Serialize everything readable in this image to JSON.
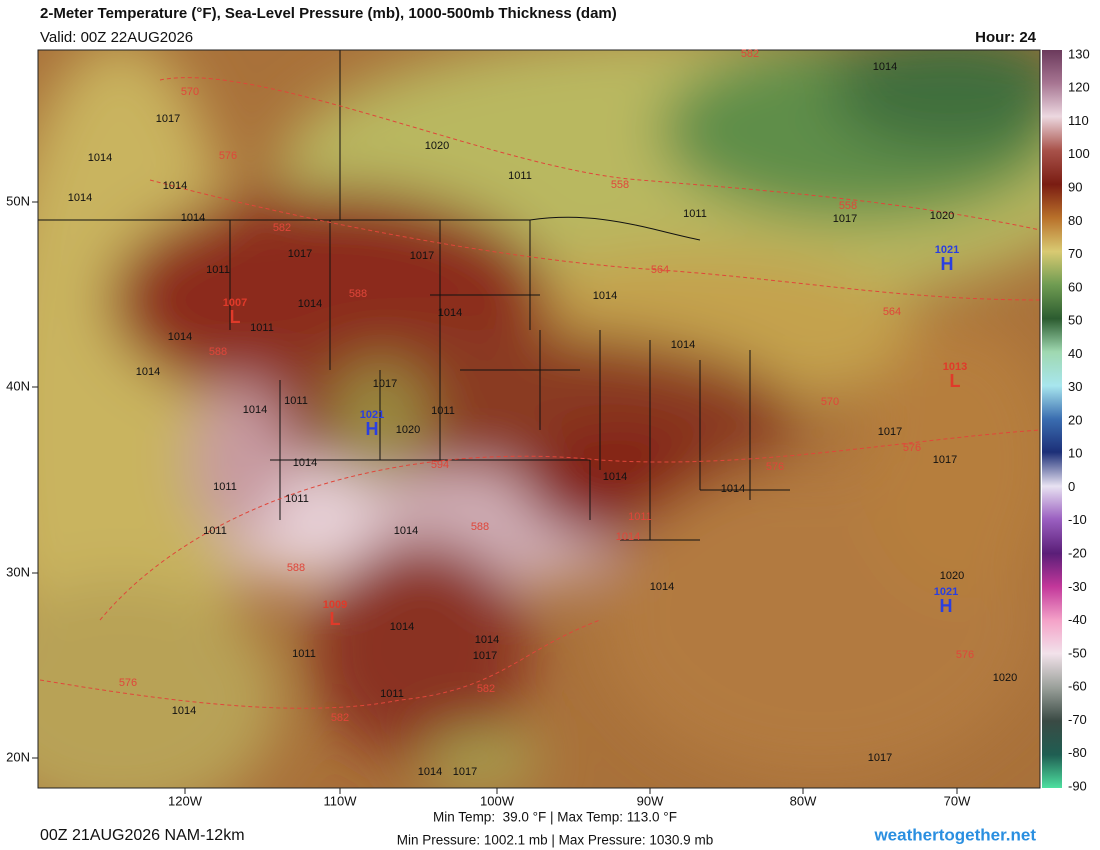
{
  "header": {
    "title": "2-Meter Temperature (°F), Sea-Level Pressure (mb), 1000-500mb Thickness (dam)",
    "valid": "Valid: 00Z 22AUG2026",
    "hour": "Hour: 24"
  },
  "colorbar": {
    "ticks": [
      130,
      120,
      110,
      100,
      90,
      80,
      70,
      60,
      50,
      40,
      30,
      20,
      10,
      0,
      -10,
      -20,
      -30,
      -40,
      -50,
      -60,
      -70,
      -80,
      -90
    ]
  },
  "axes": {
    "lon_labels": [
      "120W",
      "110W",
      "100W",
      "90W",
      "80W",
      "70W"
    ],
    "lat_labels": [
      "50N",
      "40N",
      "30N",
      "20N"
    ]
  },
  "map_labels": [
    "570",
    "1017",
    "1014",
    "576",
    "1020",
    "1014",
    "1014",
    "1014",
    "582",
    "1011",
    "558",
    "1011",
    "1017",
    "1020",
    "558",
    "1014",
    "1017",
    "1017",
    "1011",
    "1011",
    "1014",
    "1014",
    "588",
    "1014",
    "1014",
    "564",
    "564",
    "1014",
    "588",
    "1014",
    "1014",
    "1011",
    "1017",
    "1011",
    "1020",
    "570",
    "1017",
    "576",
    "1017",
    "1014",
    "594",
    "1014",
    "1014",
    "576",
    "1011",
    "1011",
    "1014",
    "588",
    "1011",
    "1011",
    "1014",
    "588",
    "1014",
    "1014",
    "1017",
    "582",
    "1011",
    "1014",
    "1020",
    "1011",
    "576",
    "1014",
    "582",
    "1014",
    "1017",
    "1017",
    "1020",
    "576",
    "582"
  ],
  "centers": [
    {
      "value": "1021",
      "symbol": "H"
    },
    {
      "value": "1021",
      "symbol": "H"
    },
    {
      "value": "1021",
      "symbol": "H"
    },
    {
      "value": "1013",
      "symbol": "L"
    },
    {
      "value": "1009",
      "symbol": "L"
    },
    {
      "value": "1007",
      "symbol": "L"
    }
  ],
  "footer": {
    "temps": "Min Temp:  39.0 °F | Max Temp: 113.0 °F",
    "pressures": "Min Pressure: 1002.1 mb | Max Pressure: 1030.9 mb",
    "run": "00Z 21AUG2026 NAM-12km",
    "site": "weathertogether.net"
  }
}
